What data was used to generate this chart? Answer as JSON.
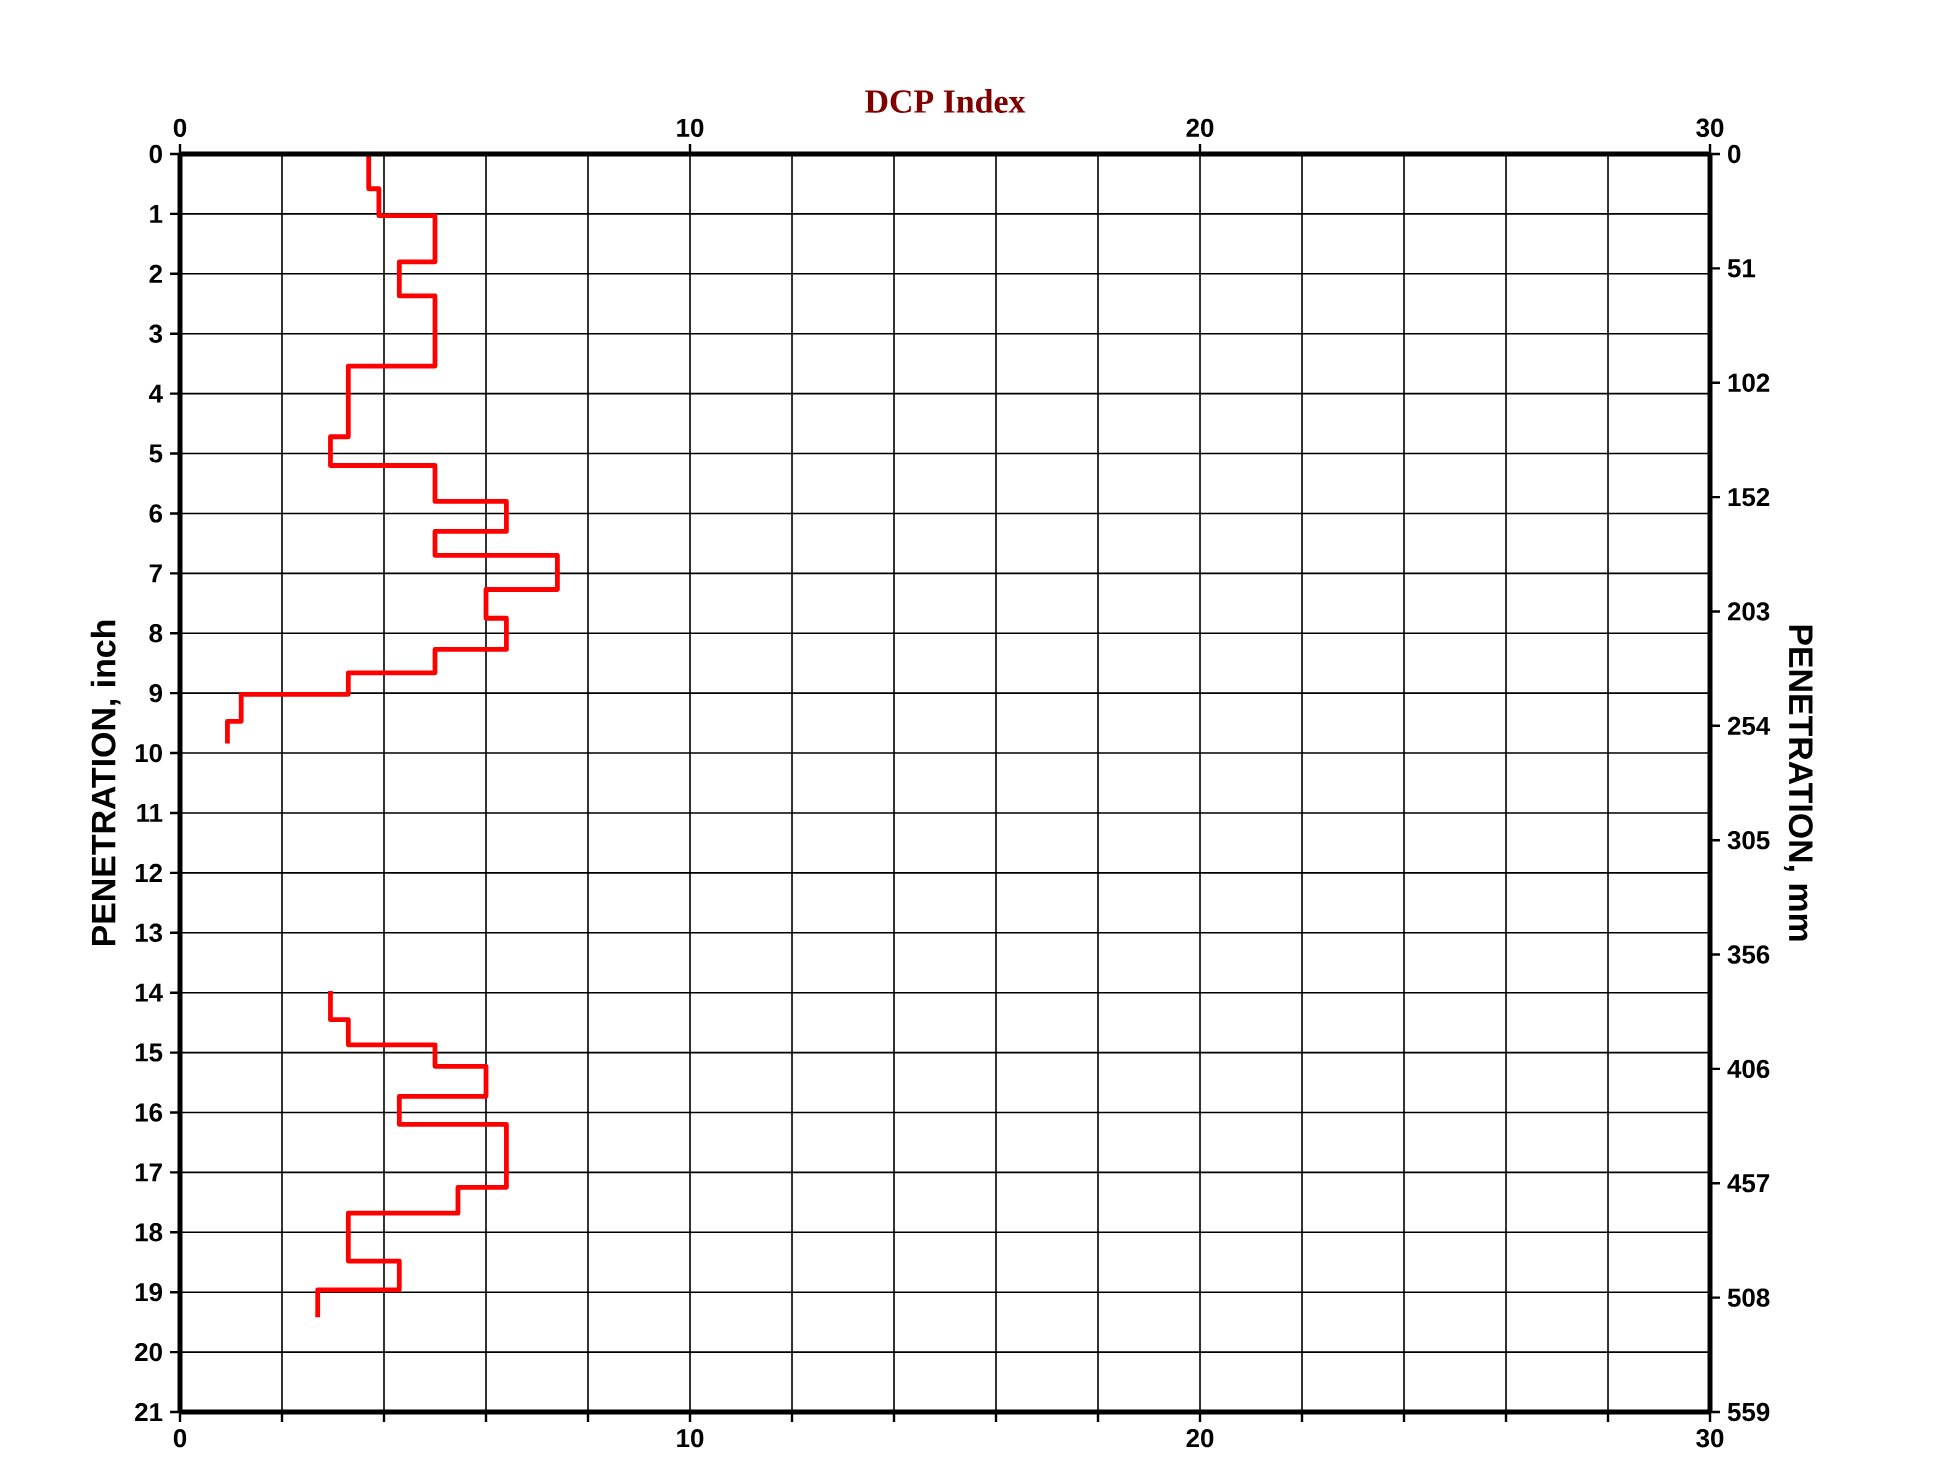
{
  "chart_data": {
    "type": "line",
    "x2label": "DCP Index",
    "ylabel": "PENETRATION, inch",
    "y2label": "PENETRATION, mm",
    "xlim": [
      0,
      30
    ],
    "xticks": [
      0,
      {
        "value": 2,
        "label": null
      },
      {
        "value": 4,
        "label": null
      },
      {
        "value": 6,
        "label": null
      },
      {
        "value": 8,
        "label": null
      },
      10,
      {
        "value": 12,
        "label": null
      },
      {
        "value": 14,
        "label": null
      },
      {
        "value": 16,
        "label": null
      },
      {
        "value": 18,
        "label": null
      },
      20,
      {
        "value": 22,
        "label": null
      },
      {
        "value": 24,
        "label": null
      },
      {
        "value": 26,
        "label": null
      },
      {
        "value": 28,
        "label": null
      },
      30
    ],
    "x2lim": [
      0,
      30
    ],
    "x2ticks": [
      0,
      10,
      20,
      30
    ],
    "ylim": [
      21,
      0
    ],
    "yticks": [
      0,
      1,
      2,
      3,
      4,
      5,
      6,
      7,
      8,
      9,
      10,
      11,
      12,
      13,
      14,
      15,
      16,
      17,
      18,
      19,
      20,
      21
    ],
    "y2lim": [
      558.8,
      0
    ],
    "y2ticks": [
      0,
      {
        "value": 50.8,
        "label": "51"
      },
      {
        "value": 101.6,
        "label": "102"
      },
      {
        "value": 152.4,
        "label": "152"
      },
      {
        "value": 203.2,
        "label": "203"
      },
      254,
      {
        "value": 304.8,
        "label": "305"
      },
      {
        "value": 355.6,
        "label": "356"
      },
      {
        "value": 406.4,
        "label": "406"
      },
      {
        "value": 457.2,
        "label": "457"
      },
      508,
      {
        "value": 558.8,
        "label": "559"
      }
    ],
    "grid": true,
    "marker": "none",
    "line_style": "solid",
    "series": [
      {
        "color": "#ff0000",
        "x": [
          3.7,
          3.7,
          3.9,
          3.9,
          5.0,
          5.0,
          4.3,
          4.3,
          5.0,
          5.0,
          3.3,
          3.3,
          2.95,
          2.95,
          5.0,
          5.0,
          6.4,
          6.4,
          5.0,
          5.0,
          7.4,
          7.4,
          6.0,
          6.0,
          6.4,
          6.4,
          5.0,
          5.0,
          3.3,
          3.3,
          1.2,
          1.2,
          0.93,
          0.93,
          null,
          2.95,
          2.95,
          3.3,
          3.3,
          5.0,
          5.0,
          6.0,
          6.0,
          4.3,
          4.3,
          6.4,
          6.4,
          5.45,
          5.45,
          3.3,
          3.3,
          4.3,
          4.3,
          2.7,
          2.7
        ],
        "values": [
          0,
          0.58,
          0.58,
          1.03,
          1.03,
          1.8,
          1.8,
          2.37,
          2.37,
          3.54,
          3.54,
          4.72,
          4.72,
          5.2,
          5.2,
          5.8,
          5.8,
          6.3,
          6.3,
          6.7,
          6.7,
          7.27,
          7.27,
          7.75,
          7.75,
          8.27,
          8.27,
          8.66,
          8.66,
          9.02,
          9.02,
          9.47,
          9.47,
          9.84,
          null,
          13.97,
          14.45,
          14.45,
          14.87,
          14.87,
          15.23,
          15.23,
          15.73,
          15.73,
          16.2,
          16.2,
          17.25,
          17.25,
          17.68,
          17.68,
          18.48,
          18.48,
          18.96,
          18.96,
          19.42
        ]
      }
    ]
  }
}
